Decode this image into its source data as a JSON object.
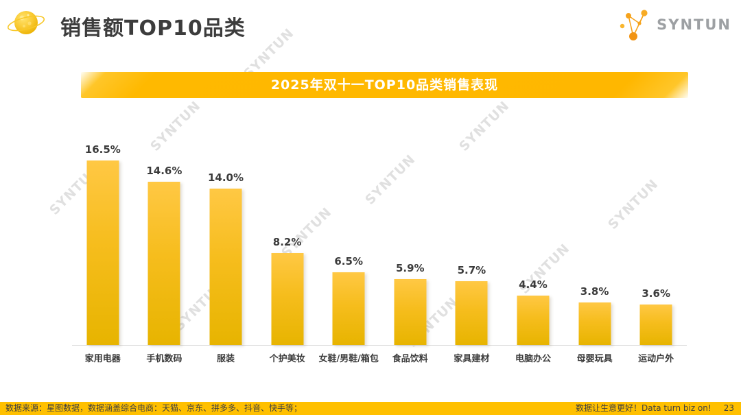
{
  "header": {
    "title": "销售额TOP10品类",
    "logo_text": "SYNTUN"
  },
  "banner": {
    "title": "2025年双十一TOP10品类销售表现"
  },
  "chart_data": {
    "type": "bar",
    "title": "2025年双十一TOP10品类销售表现",
    "categories": [
      "家用电器",
      "手机数码",
      "服装",
      "个护美妆",
      "女鞋/男鞋/箱包",
      "食品饮料",
      "家具建材",
      "电脑办公",
      "母婴玩具",
      "运动户外"
    ],
    "values": [
      16.5,
      14.6,
      14.0,
      8.2,
      6.5,
      5.9,
      5.7,
      4.4,
      3.8,
      3.6
    ],
    "value_labels": [
      "16.5%",
      "14.6%",
      "14.0%",
      "8.2%",
      "6.5%",
      "5.9%",
      "5.7%",
      "4.4%",
      "3.8%",
      "3.6%"
    ],
    "unit": "%",
    "xlabel": "",
    "ylabel": "",
    "ylim": [
      0,
      18
    ],
    "grid": false,
    "legend": false,
    "bar_color_top": "#FFC844",
    "bar_color_bottom": "#E7B400"
  },
  "watermark": {
    "text": "SYNTUN"
  },
  "footer": {
    "source": "数据来源：星图数据，数据涵盖综合电商：天猫、京东、拼多多、抖音、快手等；",
    "slogan": "数据让生意更好！Data turn biz on!",
    "page": "23"
  },
  "colors": {
    "banner_gold": "#FFB900",
    "footer_gold": "#FFC000",
    "title_text": "#3C3C3C",
    "watermark_gray": "#CCCCCC",
    "axis_line": "#DCDCDC",
    "logo_gray": "#9DA0A3",
    "logo_orange": "#F6A31C"
  }
}
